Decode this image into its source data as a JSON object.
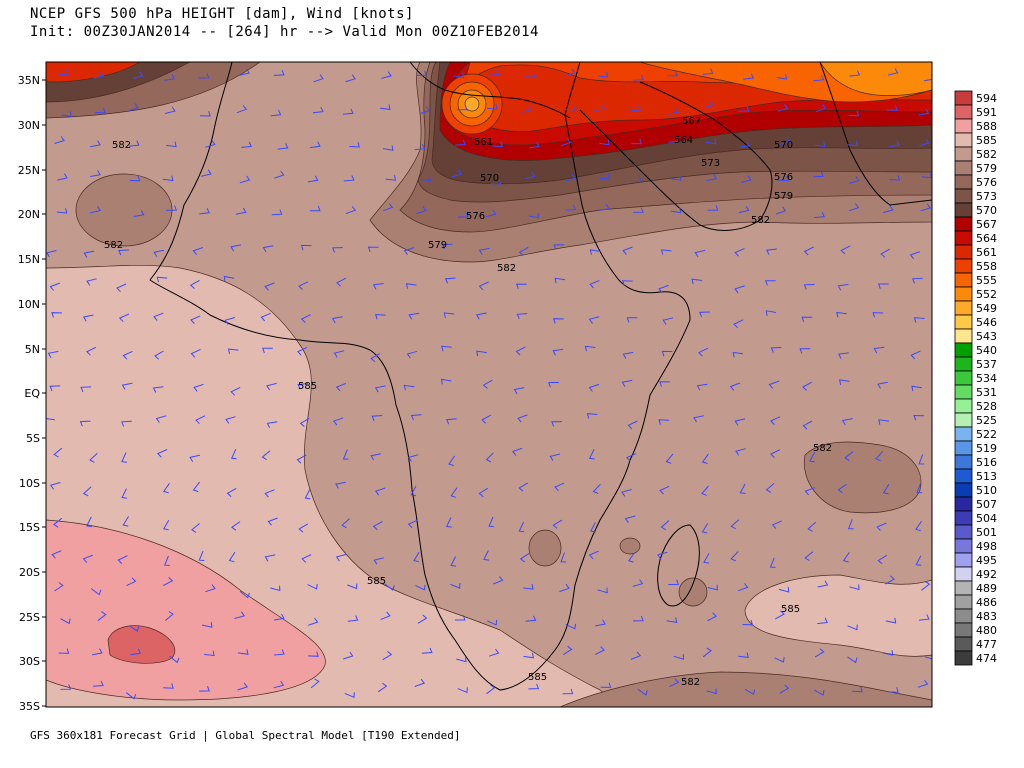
{
  "header": {
    "line1": "NCEP GFS 500 hPa HEIGHT [dam], Wind [knots]",
    "line2": "Init: 00Z30JAN2014 -- [264] hr --> Valid Mon 00Z10FEB2014"
  },
  "footer": "GFS 360x181 Forecast Grid | Global Spectral Model [T190 Extended]",
  "map": {
    "lat_labels": [
      "35N",
      "30N",
      "25N",
      "20N",
      "15N",
      "10N",
      "5N",
      "EQ",
      "5S",
      "10S",
      "15S",
      "20S",
      "25S",
      "30S",
      "35S"
    ],
    "contour_labels": [
      {
        "id": "582-nw",
        "text": "582"
      },
      {
        "id": "582-w",
        "text": "582"
      },
      {
        "id": "561",
        "text": "561"
      },
      {
        "id": "570-a",
        "text": "570"
      },
      {
        "id": "576-a",
        "text": "576"
      },
      {
        "id": "579-a",
        "text": "579"
      },
      {
        "id": "582-c",
        "text": "582"
      },
      {
        "id": "567",
        "text": "567"
      },
      {
        "id": "564",
        "text": "564"
      },
      {
        "id": "573",
        "text": "573"
      },
      {
        "id": "570-e",
        "text": "570"
      },
      {
        "id": "576-e",
        "text": "576"
      },
      {
        "id": "579-e",
        "text": "579"
      },
      {
        "id": "582-e",
        "text": "582"
      },
      {
        "id": "585-a",
        "text": "585"
      },
      {
        "id": "582-se",
        "text": "582"
      },
      {
        "id": "585-b",
        "text": "585"
      },
      {
        "id": "585-c",
        "text": "585"
      },
      {
        "id": "585-d",
        "text": "585"
      },
      {
        "id": "582-s",
        "text": "582"
      }
    ]
  },
  "colorbar": {
    "levels": [
      {
        "label": "594",
        "color": "#c83c3c"
      },
      {
        "label": "591",
        "color": "#dc6464"
      },
      {
        "label": "588",
        "color": "#f0a0a0"
      },
      {
        "label": "585",
        "color": "#e2bab0"
      },
      {
        "label": "582",
        "color": "#c29a8e"
      },
      {
        "label": "579",
        "color": "#aa8072"
      },
      {
        "label": "576",
        "color": "#94695c"
      },
      {
        "label": "573",
        "color": "#7c5448"
      },
      {
        "label": "570",
        "color": "#644036"
      },
      {
        "label": "567",
        "color": "#b00000"
      },
      {
        "label": "564",
        "color": "#c80a00"
      },
      {
        "label": "561",
        "color": "#dc2800"
      },
      {
        "label": "558",
        "color": "#ee4000"
      },
      {
        "label": "555",
        "color": "#f86400"
      },
      {
        "label": "552",
        "color": "#fc8a0a"
      },
      {
        "label": "549",
        "color": "#feaa28"
      },
      {
        "label": "546",
        "color": "#ffc846"
      },
      {
        "label": "543",
        "color": "#ffe68c"
      },
      {
        "label": "540",
        "color": "#00a000"
      },
      {
        "label": "537",
        "color": "#1eb41e"
      },
      {
        "label": "534",
        "color": "#3cc83c"
      },
      {
        "label": "531",
        "color": "#64dc64"
      },
      {
        "label": "528",
        "color": "#96f096"
      },
      {
        "label": "525",
        "color": "#b4f0b4"
      },
      {
        "label": "522",
        "color": "#78b4f0"
      },
      {
        "label": "519",
        "color": "#5a96e6"
      },
      {
        "label": "516",
        "color": "#3c78dc"
      },
      {
        "label": "513",
        "color": "#1e5ad2"
      },
      {
        "label": "510",
        "color": "#0a3cb4"
      },
      {
        "label": "507",
        "color": "#2828a0"
      },
      {
        "label": "504",
        "color": "#3c3cb4"
      },
      {
        "label": "501",
        "color": "#5a5ac8"
      },
      {
        "label": "498",
        "color": "#7878dc"
      },
      {
        "label": "495",
        "color": "#a0a0f0"
      },
      {
        "label": "492",
        "color": "#d2d2f0"
      },
      {
        "label": "489",
        "color": "#b4b4b4"
      },
      {
        "label": "486",
        "color": "#a0a0a0"
      },
      {
        "label": "483",
        "color": "#8c8c8c"
      },
      {
        "label": "480",
        "color": "#787878"
      },
      {
        "label": "477",
        "color": "#5a5a5a"
      },
      {
        "label": "474",
        "color": "#3c3c3c"
      }
    ]
  }
}
